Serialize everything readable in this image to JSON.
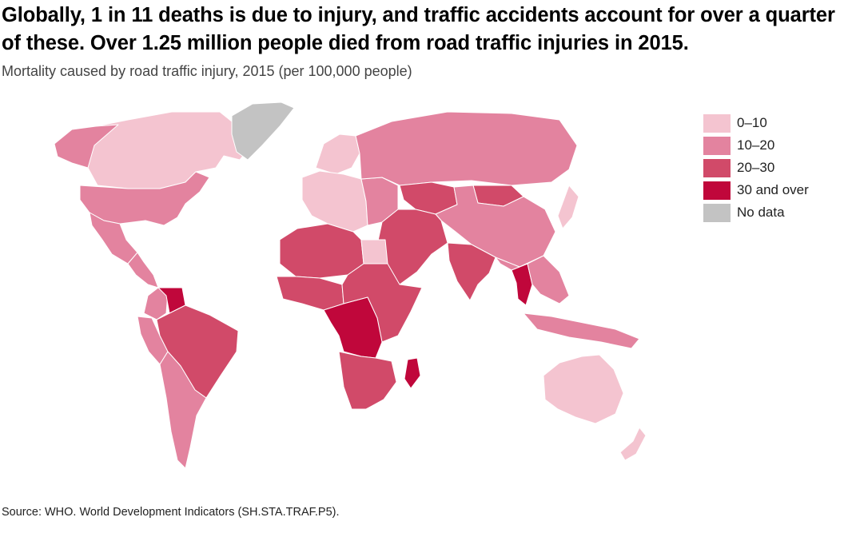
{
  "header": {
    "title": "Globally, 1 in 11 deaths is due to injury, and traffic accidents account for over a quarter of these. Over 1.25 million people died from road traffic injuries in 2015.",
    "subtitle": "Mortality caused by road traffic injury, 2015 (per 100,000 people)"
  },
  "legend": {
    "items": [
      {
        "label": "0–10",
        "color": "#f4c4d0"
      },
      {
        "label": "10–20",
        "color": "#e3839f"
      },
      {
        "label": "20–30",
        "color": "#d14a69"
      },
      {
        "label": "30 and over",
        "color": "#c0073b"
      },
      {
        "label": "No data",
        "color": "#c3c3c3"
      }
    ]
  },
  "regions": [
    {
      "name": "canada",
      "cls": "0–10"
    },
    {
      "name": "alaska",
      "cls": "10–20"
    },
    {
      "name": "greenland",
      "cls": "No data"
    },
    {
      "name": "united-states",
      "cls": "10–20"
    },
    {
      "name": "mexico",
      "cls": "10–20"
    },
    {
      "name": "central-america",
      "cls": "10–20"
    },
    {
      "name": "colombia",
      "cls": "10–20"
    },
    {
      "name": "venezuela",
      "cls": "30 and over"
    },
    {
      "name": "brazil",
      "cls": "20–30"
    },
    {
      "name": "peru",
      "cls": "10–20"
    },
    {
      "name": "southern-cone",
      "cls": "10–20"
    },
    {
      "name": "western-europe",
      "cls": "0–10"
    },
    {
      "name": "scandinavia",
      "cls": "0–10"
    },
    {
      "name": "eastern-europe",
      "cls": "10–20"
    },
    {
      "name": "russia",
      "cls": "10–20"
    },
    {
      "name": "kazakhstan",
      "cls": "20–30"
    },
    {
      "name": "mongolia",
      "cls": "20–30"
    },
    {
      "name": "china",
      "cls": "10–20"
    },
    {
      "name": "middle-east",
      "cls": "20–30"
    },
    {
      "name": "india",
      "cls": "20–30"
    },
    {
      "name": "thailand",
      "cls": "30 and over"
    },
    {
      "name": "southeast-asia",
      "cls": "10–20"
    },
    {
      "name": "north-africa",
      "cls": "20–30"
    },
    {
      "name": "egypt",
      "cls": "0–10"
    },
    {
      "name": "west-africa",
      "cls": "20–30"
    },
    {
      "name": "central-africa",
      "cls": "30 and over"
    },
    {
      "name": "east-africa",
      "cls": "20–30"
    },
    {
      "name": "southern-africa",
      "cls": "20–30"
    },
    {
      "name": "madagascar",
      "cls": "30 and over"
    },
    {
      "name": "australia",
      "cls": "0–10"
    },
    {
      "name": "new-zealand",
      "cls": "0–10"
    },
    {
      "name": "japan",
      "cls": "0–10"
    },
    {
      "name": "indonesia",
      "cls": "10–20"
    }
  ],
  "source": "Source: WHO. World Development Indicators (SH.STA.TRAF.P5)."
}
